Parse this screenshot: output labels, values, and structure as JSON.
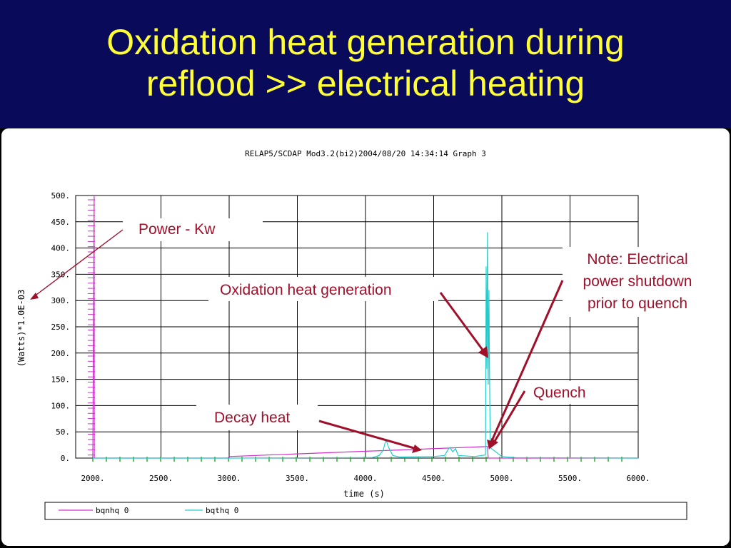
{
  "slide": {
    "title_line1": "Oxidation heat generation during",
    "title_line2": "reflood >> electrical heating"
  },
  "colors": {
    "title_band": "#0a0a5a",
    "title_text": "#ffff33",
    "annotation": "#a0102a",
    "bqnhq_series": "#cc33cc",
    "bqthq_series": "#22cccc",
    "tick_marks": "#22aa22"
  },
  "chart_data": {
    "type": "line",
    "header": "RELAP5/SCDAP Mod3.2(bi2)2004/08/20   14:34:14      Graph   3",
    "xlabel": "time (s)",
    "ylabel": "(Watts)*1.0E-03",
    "xlim": [
      2000,
      6000
    ],
    "ylim": [
      0,
      500
    ],
    "xticks": [
      2000,
      2500,
      3000,
      3500,
      4000,
      4500,
      5000,
      5500,
      6000
    ],
    "yticks": [
      0,
      50,
      100,
      150,
      200,
      250,
      300,
      350,
      400,
      450,
      500
    ],
    "xtick_labels": [
      "2000.",
      "2500.",
      "3000.",
      "3500.",
      "4000.",
      "4500.",
      "5000.",
      "5500.",
      "6000."
    ],
    "ytick_labels": [
      "0.",
      "50.",
      "100.",
      "150.",
      "200.",
      "250.",
      "300.",
      "350.",
      "400.",
      "450.",
      "500."
    ],
    "grid": true,
    "legend": "bottom",
    "series": [
      {
        "name": "bqnhq 0",
        "color": "#cc33cc",
        "points": [
          [
            2000,
            0
          ],
          [
            2010,
            500
          ],
          [
            2011,
            0
          ],
          [
            2990,
            0
          ],
          [
            3000,
            3
          ],
          [
            3200,
            5
          ],
          [
            3400,
            7
          ],
          [
            3600,
            9
          ],
          [
            3800,
            11
          ],
          [
            4000,
            13
          ],
          [
            4200,
            15
          ],
          [
            4400,
            17
          ],
          [
            4600,
            19
          ],
          [
            4800,
            21
          ],
          [
            4895,
            22
          ],
          [
            4900,
            0
          ],
          [
            6000,
            0
          ]
        ]
      },
      {
        "name": "bqthq 0",
        "color": "#22cccc",
        "points": [
          [
            2000,
            0
          ],
          [
            3000,
            0
          ],
          [
            4050,
            1
          ],
          [
            4100,
            5
          ],
          [
            4130,
            15
          ],
          [
            4150,
            35
          ],
          [
            4170,
            20
          ],
          [
            4200,
            5
          ],
          [
            4250,
            2
          ],
          [
            4500,
            3
          ],
          [
            4580,
            5
          ],
          [
            4610,
            18
          ],
          [
            4620,
            20
          ],
          [
            4640,
            12
          ],
          [
            4660,
            18
          ],
          [
            4680,
            5
          ],
          [
            4800,
            3
          ],
          [
            4880,
            6
          ],
          [
            4885,
            365
          ],
          [
            4890,
            170
          ],
          [
            4895,
            430
          ],
          [
            4900,
            140
          ],
          [
            4905,
            320
          ],
          [
            4910,
            150
          ],
          [
            4915,
            20
          ],
          [
            5000,
            3
          ],
          [
            5100,
            1
          ],
          [
            6000,
            0
          ]
        ]
      }
    ],
    "annotations": [
      "Power - Kw",
      "Oxidation heat generation",
      "Note: Electrical",
      "power shutdown",
      "prior to quench",
      "Quench",
      "Decay heat"
    ]
  }
}
